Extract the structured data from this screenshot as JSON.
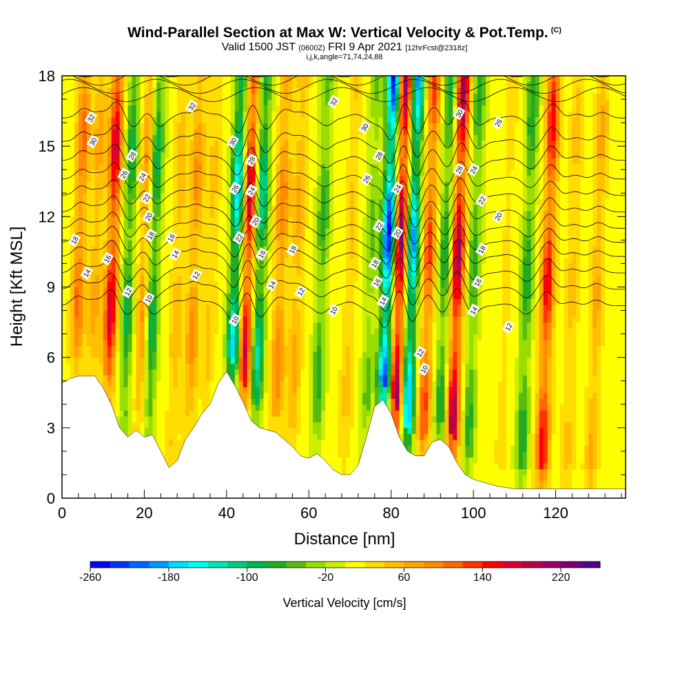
{
  "title": {
    "main": "Wind-Parallel Section at Max W: Vertical Velocity & Pot.Temp.",
    "copyright": "(C)",
    "valid_prefix": "Valid 1500 JST",
    "valid_utc": "(0600Z)",
    "valid_date": "FRI 9 Apr 2021",
    "forecast": "[12hrFcst@2318z]",
    "indices": "i,j,k,angle=71,74,24,88"
  },
  "colorbar": {
    "label": "Vertical Velocity [cm/s]",
    "tick_labels": [
      "-260",
      "-180",
      "-100",
      "-20",
      "60",
      "140",
      "220"
    ],
    "levels": [
      -260,
      -240,
      -220,
      -200,
      -180,
      -160,
      -140,
      -120,
      -100,
      -80,
      -60,
      -40,
      -20,
      0,
      20,
      40,
      60,
      80,
      100,
      120,
      140,
      160,
      180,
      200,
      220,
      240
    ],
    "colors": [
      "#0000ff",
      "#0033ff",
      "#0066ff",
      "#0099ff",
      "#00ddff",
      "#00ffee",
      "#00e6b4",
      "#00cc80",
      "#00b450",
      "#22aa22",
      "#55bb11",
      "#99dd00",
      "#ccee00",
      "#ffff00",
      "#ffdd00",
      "#ffc000",
      "#ffa500",
      "#ff8c00",
      "#ff6600",
      "#ff3300",
      "#ff0000",
      "#dd0033",
      "#bb0044",
      "#990066",
      "#770077",
      "#550088"
    ]
  },
  "chart_data": {
    "type": "heatmap",
    "title": "Wind-Parallel Section at Max W: Vertical Velocity & Pot.Temp.",
    "xlabel": "Distance [nm]",
    "ylabel": "Height [Kft MSL]",
    "xlim": [
      0,
      137
    ],
    "ylim": [
      0,
      18
    ],
    "x_ticks": [
      0,
      20,
      40,
      60,
      80,
      100,
      120
    ],
    "y_ticks": [
      0,
      3,
      6,
      9,
      12,
      15,
      18
    ],
    "grid": false,
    "velocity_bands": [
      {
        "x": 4,
        "w": 100
      },
      {
        "x": 8,
        "w": 60
      },
      {
        "x": 12,
        "w": 170
      },
      {
        "x": 16,
        "w": -100
      },
      {
        "x": 20,
        "w": 90
      },
      {
        "x": 22,
        "w": -120
      },
      {
        "x": 28,
        "w": 50
      },
      {
        "x": 32,
        "w": 80
      },
      {
        "x": 36,
        "w": 40
      },
      {
        "x": 42,
        "w": -180
      },
      {
        "x": 45,
        "w": 180
      },
      {
        "x": 48,
        "w": -140
      },
      {
        "x": 53,
        "w": 90
      },
      {
        "x": 57,
        "w": 60
      },
      {
        "x": 63,
        "w": -80
      },
      {
        "x": 70,
        "w": 40
      },
      {
        "x": 75,
        "w": -60
      },
      {
        "x": 79,
        "w": -260
      },
      {
        "x": 82,
        "w": 220
      },
      {
        "x": 85,
        "w": -200
      },
      {
        "x": 89,
        "w": 120
      },
      {
        "x": 93,
        "w": -100
      },
      {
        "x": 96,
        "w": 200
      },
      {
        "x": 100,
        "w": -80
      },
      {
        "x": 108,
        "w": 20
      },
      {
        "x": 113,
        "w": -90
      },
      {
        "x": 118,
        "w": 150
      },
      {
        "x": 124,
        "w": 40
      },
      {
        "x": 130,
        "w": 60
      }
    ],
    "terrain": [
      [
        0,
        4.9
      ],
      [
        2,
        5.1
      ],
      [
        4,
        5.2
      ],
      [
        6,
        5.2
      ],
      [
        8,
        5.2
      ],
      [
        10,
        4.7
      ],
      [
        12,
        4.0
      ],
      [
        14,
        3.0
      ],
      [
        16,
        2.6
      ],
      [
        18,
        2.9
      ],
      [
        20,
        2.6
      ],
      [
        22,
        2.7
      ],
      [
        24,
        2.0
      ],
      [
        26,
        1.3
      ],
      [
        28,
        1.6
      ],
      [
        30,
        2.5
      ],
      [
        32,
        3.0
      ],
      [
        34,
        3.6
      ],
      [
        36,
        4.0
      ],
      [
        38,
        4.9
      ],
      [
        40,
        5.4
      ],
      [
        42,
        4.8
      ],
      [
        44,
        4.1
      ],
      [
        46,
        3.3
      ],
      [
        48,
        3.0
      ],
      [
        50,
        2.9
      ],
      [
        52,
        2.8
      ],
      [
        54,
        2.5
      ],
      [
        56,
        2.2
      ],
      [
        58,
        1.8
      ],
      [
        60,
        1.7
      ],
      [
        62,
        1.9
      ],
      [
        64,
        1.6
      ],
      [
        66,
        1.2
      ],
      [
        68,
        1.0
      ],
      [
        70,
        1.0
      ],
      [
        72,
        1.4
      ],
      [
        74,
        2.6
      ],
      [
        76,
        3.9
      ],
      [
        78,
        4.2
      ],
      [
        80,
        3.6
      ],
      [
        82,
        2.6
      ],
      [
        84,
        2.0
      ],
      [
        86,
        1.8
      ],
      [
        88,
        1.8
      ],
      [
        90,
        2.4
      ],
      [
        92,
        2.5
      ],
      [
        94,
        2.2
      ],
      [
        96,
        1.5
      ],
      [
        98,
        1.0
      ],
      [
        100,
        0.8
      ],
      [
        102,
        0.7
      ],
      [
        104,
        0.6
      ],
      [
        106,
        0.5
      ],
      [
        110,
        0.4
      ],
      [
        137,
        0.4
      ]
    ],
    "isentropes": [
      10,
      12,
      14,
      16,
      18,
      20,
      22,
      24,
      26,
      28,
      30,
      32
    ],
    "isentrope_labels": [
      {
        "text": "32",
        "x": 7,
        "y": 16.2
      },
      {
        "text": "30",
        "x": 7.5,
        "y": 15.2
      },
      {
        "text": "28",
        "x": 17,
        "y": 14.6
      },
      {
        "text": "26",
        "x": 15,
        "y": 13.8
      },
      {
        "text": "24",
        "x": 19.5,
        "y": 13.7
      },
      {
        "text": "22",
        "x": 20.5,
        "y": 12.8
      },
      {
        "text": "20",
        "x": 21,
        "y": 12.0
      },
      {
        "text": "18",
        "x": 3,
        "y": 11.0
      },
      {
        "text": "16",
        "x": 11,
        "y": 10.2
      },
      {
        "text": "14",
        "x": 6,
        "y": 9.6
      },
      {
        "text": "12",
        "x": 16,
        "y": 8.8
      },
      {
        "text": "10",
        "x": 21,
        "y": 8.5
      },
      {
        "text": "18",
        "x": 21.5,
        "y": 11.2
      },
      {
        "text": "16",
        "x": 26.5,
        "y": 11.1
      },
      {
        "text": "14",
        "x": 27.5,
        "y": 10.4
      },
      {
        "text": "12",
        "x": 32.5,
        "y": 9.5
      },
      {
        "text": "32",
        "x": 31.5,
        "y": 16.7
      },
      {
        "text": "30",
        "x": 41.5,
        "y": 15.2
      },
      {
        "text": "28",
        "x": 46,
        "y": 14.4
      },
      {
        "text": "26",
        "x": 42,
        "y": 13.2
      },
      {
        "text": "24",
        "x": 46,
        "y": 13.1
      },
      {
        "text": "22",
        "x": 43,
        "y": 11.1
      },
      {
        "text": "20",
        "x": 47,
        "y": 11.8
      },
      {
        "text": "18",
        "x": 56,
        "y": 10.6
      },
      {
        "text": "16",
        "x": 48.5,
        "y": 10.4
      },
      {
        "text": "14",
        "x": 51,
        "y": 9.1
      },
      {
        "text": "12",
        "x": 58,
        "y": 8.8
      },
      {
        "text": "10",
        "x": 42,
        "y": 7.6
      },
      {
        "text": "10",
        "x": 66,
        "y": 8.0
      },
      {
        "text": "32",
        "x": 66,
        "y": 16.9
      },
      {
        "text": "30",
        "x": 73.5,
        "y": 15.8
      },
      {
        "text": "28",
        "x": 77,
        "y": 14.6
      },
      {
        "text": "26",
        "x": 74,
        "y": 13.6
      },
      {
        "text": "22",
        "x": 77,
        "y": 11.6
      },
      {
        "text": "18",
        "x": 76,
        "y": 10.0
      },
      {
        "text": "16",
        "x": 76.5,
        "y": 9.2
      },
      {
        "text": "14",
        "x": 78,
        "y": 8.4
      },
      {
        "text": "24",
        "x": 81.5,
        "y": 13.2
      },
      {
        "text": "20",
        "x": 81.5,
        "y": 11.3
      },
      {
        "text": "12",
        "x": 87,
        "y": 6.2
      },
      {
        "text": "10",
        "x": 88,
        "y": 5.5
      },
      {
        "text": "30",
        "x": 96.5,
        "y": 16.4
      },
      {
        "text": "28",
        "x": 96.5,
        "y": 14.0
      },
      {
        "text": "26",
        "x": 106,
        "y": 16.0
      },
      {
        "text": "24",
        "x": 100,
        "y": 14.0
      },
      {
        "text": "22",
        "x": 102,
        "y": 12.7
      },
      {
        "text": "20",
        "x": 106,
        "y": 12.0
      },
      {
        "text": "18",
        "x": 102,
        "y": 10.6
      },
      {
        "text": "16",
        "x": 101,
        "y": 9.2
      },
      {
        "text": "14",
        "x": 100,
        "y": 8.0
      },
      {
        "text": "12",
        "x": 108.5,
        "y": 7.3
      }
    ]
  }
}
